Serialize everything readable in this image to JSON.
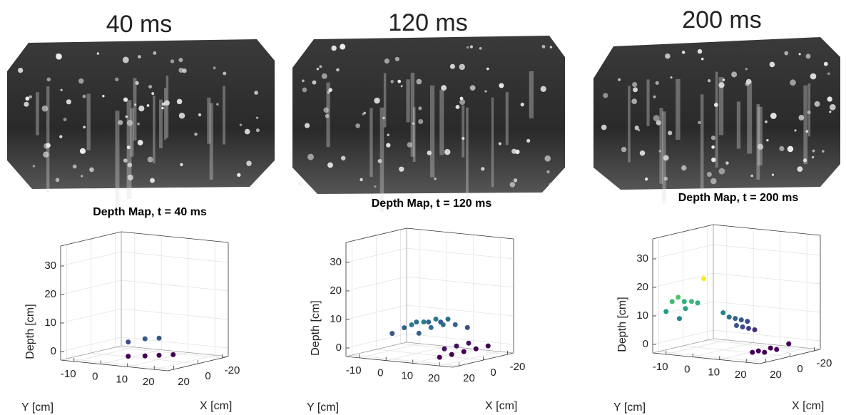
{
  "panels": [
    {
      "caption": "40 ms"
    },
    {
      "caption": "120 ms"
    },
    {
      "caption": "200 ms"
    }
  ],
  "chart_data": [
    {
      "type": "scatter3d",
      "title": "Depth Map, t =  40 ms",
      "xlabel": "X [cm]",
      "ylabel": "Y [cm]",
      "zlabel": "Depth [cm]",
      "xlim": [
        -25,
        25
      ],
      "ylim": [
        -15,
        25
      ],
      "zlim": [
        -3,
        37
      ],
      "xticks": [
        -20,
        0,
        20
      ],
      "yticks": [
        -10,
        0,
        10,
        20
      ],
      "zticks": [
        0,
        10,
        20,
        30
      ],
      "colormap": "viridis",
      "clim": [
        0,
        22
      ],
      "grid": true,
      "x": [
        20,
        15,
        10,
        5,
        20,
        15,
        10
      ],
      "y": [
        8,
        12,
        15,
        18,
        8,
        12,
        15
      ],
      "z": [
        0,
        0,
        0,
        0,
        5,
        6,
        6
      ]
    },
    {
      "type": "scatter3d",
      "title": "Depth Map, t =  120 ms",
      "xlabel": "X [cm]",
      "ylabel": "Y [cm]",
      "zlabel": "Depth [cm]",
      "xlim": [
        -25,
        25
      ],
      "ylim": [
        -15,
        25
      ],
      "zlim": [
        -3,
        37
      ],
      "xticks": [
        -20,
        0,
        20
      ],
      "yticks": [
        -10,
        0,
        10,
        20
      ],
      "zticks": [
        0,
        10,
        20,
        30
      ],
      "colormap": "viridis",
      "clim": [
        0,
        22
      ],
      "grid": true,
      "x": [
        20,
        10,
        0,
        -10,
        -20,
        20,
        10,
        0,
        -10,
        -20,
        15,
        5,
        -5,
        -15,
        25,
        15,
        5,
        -5,
        -15,
        10,
        0,
        -10
      ],
      "y": [
        0,
        0,
        0,
        0,
        0,
        10,
        10,
        10,
        10,
        10,
        5,
        5,
        5,
        5,
        20,
        20,
        20,
        20,
        20,
        15,
        15,
        15
      ],
      "z": [
        6,
        7,
        8,
        7,
        6,
        7,
        8,
        8,
        7,
        5,
        9,
        9,
        9,
        8,
        0,
        0,
        0,
        0,
        0,
        1,
        1,
        1
      ]
    },
    {
      "type": "scatter3d",
      "title": "Depth Map, t =  200 ms",
      "xlabel": "X [cm]",
      "ylabel": "Y [cm]",
      "zlabel": "Depth [cm]",
      "xlim": [
        -25,
        25
      ],
      "ylim": [
        -15,
        25
      ],
      "zlim": [
        -3,
        37
      ],
      "xticks": [
        -20,
        0,
        20
      ],
      "yticks": [
        -10,
        0,
        10,
        20
      ],
      "zticks": [
        0,
        10,
        20,
        30
      ],
      "colormap": "viridis",
      "clim": [
        0,
        22
      ],
      "grid": true,
      "x": [
        25,
        20,
        15,
        10,
        25,
        20,
        15,
        10,
        5,
        0,
        -5,
        -10,
        -15,
        -20,
        0,
        -5,
        -10,
        -15,
        20,
        15,
        10,
        5,
        0,
        -10
      ],
      "y": [
        -10,
        -10,
        -10,
        -10,
        -5,
        -5,
        -5,
        -5,
        -5,
        0,
        0,
        0,
        0,
        0,
        5,
        5,
        5,
        5,
        20,
        20,
        20,
        20,
        20,
        20
      ],
      "z": [
        12,
        15,
        16,
        14,
        10,
        13,
        15,
        14,
        22,
        10,
        8,
        7,
        6,
        5,
        6,
        5,
        4,
        3,
        0,
        0,
        -1,
        0,
        -1,
        0
      ]
    }
  ]
}
